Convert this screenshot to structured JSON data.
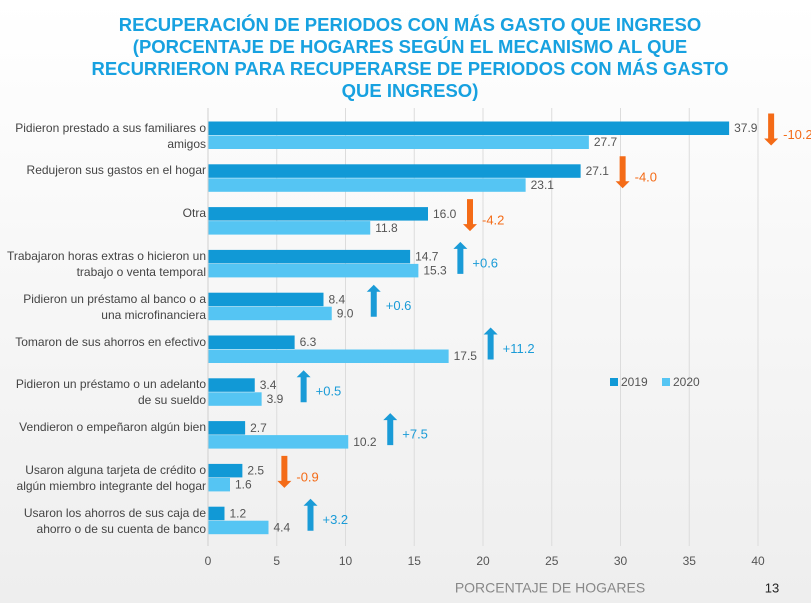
{
  "chart_data": {
    "type": "bar",
    "orientation": "horizontal",
    "title": "RECUPERACIÓN DE PERIODOS CON MÁS GASTO QUE INGRESO",
    "subtitle": "(PORCENTAJE DE HOGARES SEGÚN EL MECANISMO AL QUE RECURRIERON PARA RECUPERARSE DE PERIODOS CON MÁS GASTO QUE INGRESO)",
    "x_label": "PORCENTAJE DE HOGARES",
    "categories": [
      "Pidieron prestado a sus familiares o amigos",
      "Redujeron sus gastos en el hogar",
      "Otra",
      "Trabajaron horas extras o hicieron un trabajo o venta temporal",
      "Pidieron un préstamo al banco o a una microfinanciera",
      "Tomaron de sus ahorros en efectivo",
      "Pidieron un préstamo o un adelanto de su sueldo",
      "Vendieron o empeñaron algún bien",
      "Usaron alguna tarjeta de crédito o algún miembro integrante del hogar",
      "Usaron los ahorros de sus caja de ahorro o de su cuenta de banco"
    ],
    "series": [
      {
        "name": "2019",
        "color": "#1199d6",
        "values": [
          37.9,
          27.1,
          16.0,
          14.7,
          8.4,
          6.3,
          3.4,
          2.7,
          2.5,
          1.2
        ],
        "value_labels": [
          "37.9",
          "27.1",
          "16.0",
          "14.7",
          "8.4",
          "6.3",
          "3.4",
          "2.7",
          "2.5",
          "1.2"
        ]
      },
      {
        "name": "2020",
        "color": "#55c5f3",
        "values": [
          27.7,
          23.1,
          11.8,
          15.3,
          9.0,
          17.5,
          3.9,
          10.2,
          1.6,
          4.4
        ],
        "value_labels": [
          "27.7",
          "23.1",
          "11.8",
          "15.3",
          "9.0",
          "17.5",
          "3.9",
          "10.2",
          "1.6",
          "4.4"
        ]
      }
    ],
    "change": {
      "values": [
        -10.2,
        -4.0,
        -4.2,
        0.6,
        0.6,
        11.2,
        0.5,
        7.5,
        -0.9,
        3.2
      ],
      "value_labels": [
        "-10.2",
        "-4.0",
        "-4.2",
        "+0.6",
        "+0.6",
        "+11.2",
        "+0.5",
        "+7.5",
        "-0.9",
        "+3.2"
      ],
      "increase_color": "#1a9bd7",
      "decrease_color": "#f46b17"
    },
    "xlim": [
      0,
      40
    ],
    "xticks": [
      0,
      5,
      10,
      15,
      20,
      25,
      30,
      35,
      40
    ],
    "grid": true,
    "legend": "right"
  },
  "page_number": "13"
}
